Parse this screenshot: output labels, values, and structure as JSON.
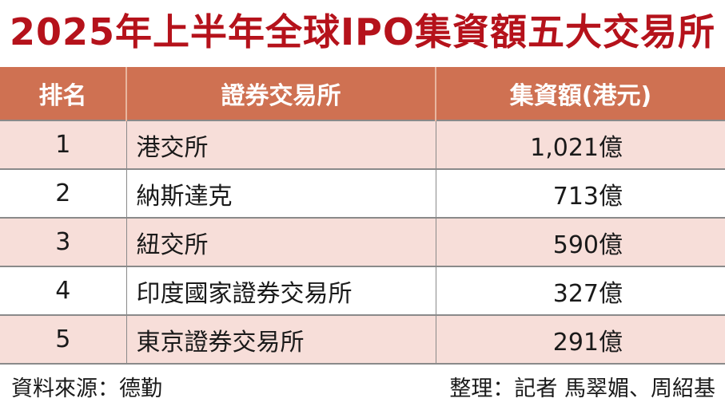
{
  "title": "2025年上半年全球IPO集資額五大交易所",
  "chart_data": {
    "type": "table",
    "columns": [
      "排名",
      "證券交易所",
      "集資額(港元)"
    ],
    "rows": [
      {
        "rank": "1",
        "exchange": "港交所",
        "amount": "1,021億",
        "value": 1021
      },
      {
        "rank": "2",
        "exchange": "納斯達克",
        "amount": "713億",
        "value": 713
      },
      {
        "rank": "3",
        "exchange": "紐交所",
        "amount": "590億",
        "value": 590
      },
      {
        "rank": "4",
        "exchange": "印度國家證券交易所",
        "amount": "327億",
        "value": 327
      },
      {
        "rank": "5",
        "exchange": "東京證券交易所",
        "amount": "291億",
        "value": 291
      }
    ]
  },
  "footer": {
    "source": "資料來源：德勤",
    "compiled_by": "整理：記者 馬翠媚、周紹基"
  },
  "colors": {
    "title": "#b5121b",
    "header_bg": "#cf7152",
    "row_alt_bg": "#f7ded9"
  }
}
